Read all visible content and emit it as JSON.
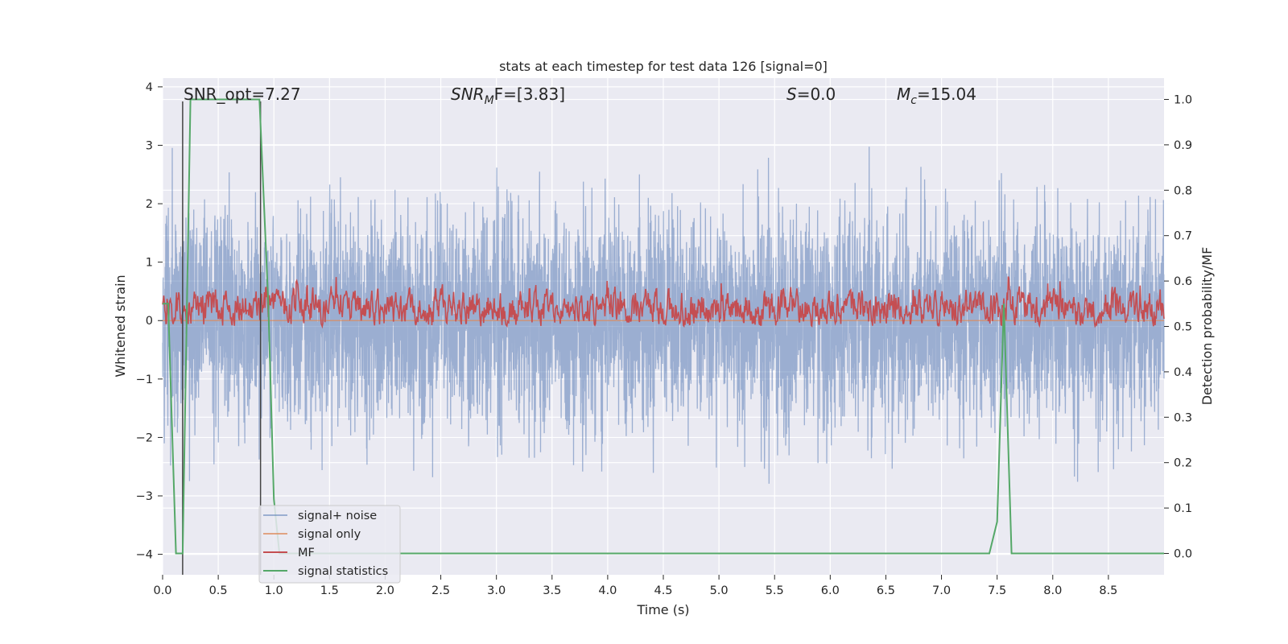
{
  "chart_data": {
    "type": "line",
    "title": "stats at each timestep for test data 126 [signal=0]",
    "xlabel": "Time (s)",
    "ylabel": "Whitened strain",
    "y2label": "Detection probability/MF",
    "xlim": [
      0.0,
      9.0
    ],
    "ylim": [
      -4.35,
      4.15
    ],
    "y2lim": [
      -0.047,
      1.047
    ],
    "xticks": [
      "0.0",
      "0.5",
      "1.0",
      "1.5",
      "2.0",
      "2.5",
      "3.0",
      "3.5",
      "4.0",
      "4.5",
      "5.0",
      "5.5",
      "6.0",
      "6.5",
      "7.0",
      "7.5",
      "8.0",
      "8.5"
    ],
    "yticks": [
      "4",
      "3",
      "2",
      "1",
      "0",
      "−1",
      "−2",
      "−3",
      "−4"
    ],
    "y2ticks": [
      "1.0",
      "0.9",
      "0.8",
      "0.7",
      "0.6",
      "0.5",
      "0.4",
      "0.3",
      "0.2",
      "0.1",
      "0.0"
    ],
    "grid": true,
    "legend_position": "lower-left",
    "annotations": {
      "snr_opt": "SNR_opt=7.27",
      "snr_mf_main": "SNR",
      "snr_mf_sub": "M",
      "snr_mf_rest": "F=[3.83]",
      "s_main": "S",
      "s_rest": "=0.0",
      "mc_main": "M",
      "mc_sub": "c",
      "mc_rest": "=15.04"
    },
    "series": [
      {
        "name": "signal+ noise",
        "color": "#4c72b0",
        "opacity": 0.5,
        "kind": "noise",
        "sample_rate": 600,
        "envelope_std": 0.9,
        "peak_max": 3.75,
        "peak_min": -4.0
      },
      {
        "name": "signal only",
        "color": "#dd8452",
        "opacity": 0.7,
        "x": [
          0.0,
          9.0
        ],
        "y": [
          0.0,
          0.0
        ]
      },
      {
        "name": "MF",
        "color": "#c44e52",
        "axis": "right",
        "kind": "mf",
        "sample_rate": 200,
        "mean": 0.54,
        "range": [
          0.5,
          0.61
        ]
      },
      {
        "name": "signal statistics",
        "color": "#55a868",
        "axis": "right",
        "x": [
          0.0,
          0.05,
          0.12,
          0.18,
          0.25,
          0.87,
          0.95,
          1.0,
          1.05,
          7.43,
          7.5,
          7.56,
          7.63,
          7.7,
          9.0
        ],
        "y": [
          0.55,
          0.55,
          0.0,
          0.0,
          1.0,
          1.0,
          0.55,
          0.12,
          0.0,
          0.0,
          0.07,
          0.55,
          0.0,
          0.0,
          0.0
        ]
      }
    ],
    "vlines": [
      {
        "x": 0.18,
        "y_top": 3.75,
        "color": "#444444"
      },
      {
        "x": 0.88,
        "y_top": 3.75,
        "color": "#444444"
      }
    ]
  }
}
